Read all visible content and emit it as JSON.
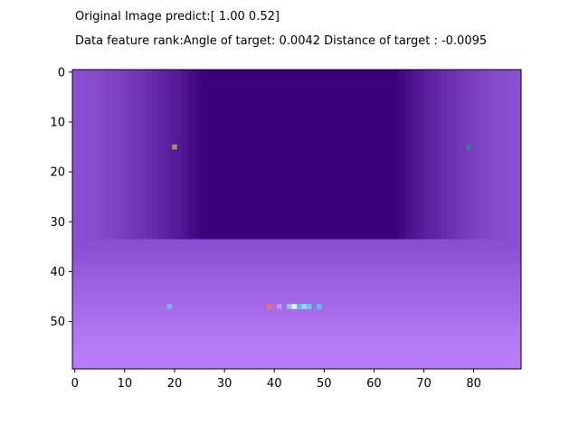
{
  "header": {
    "line1": "Original Image predict:[ 1.00  0.52]",
    "line2": "Data feature rank:Angle of target: 0.0042 Distance of target : -0.0095"
  },
  "chart_data": {
    "type": "heatmap",
    "title": "",
    "xlabel": "",
    "ylabel": "",
    "xlim": [
      -0.5,
      89.5
    ],
    "ylim": [
      59.5,
      -0.5
    ],
    "x_ticks": [
      "0",
      "10",
      "20",
      "30",
      "40",
      "50",
      "60",
      "70",
      "80"
    ],
    "y_ticks": [
      "0",
      "10",
      "20",
      "30",
      "40",
      "50"
    ],
    "image_width": 90,
    "image_height": 60,
    "colors": {
      "back_wall": "#3d007c",
      "side_wall_outer": "#8a4ed0",
      "floor_far": "#8a4ed0",
      "floor_near": "#b87cf8"
    },
    "highlighted_pixels": [
      {
        "x": 20,
        "y": 15,
        "color": "#9a9a60"
      },
      {
        "x": 79,
        "y": 15,
        "color": "#3a7a9a"
      },
      {
        "x": 19,
        "y": 47,
        "color": "#80b0f8"
      },
      {
        "x": 39,
        "y": 47,
        "color": "#f07070"
      },
      {
        "x": 41,
        "y": 47,
        "color": "#c890f8"
      },
      {
        "x": 43,
        "y": 47,
        "color": "#80d0f0"
      },
      {
        "x": 44,
        "y": 47,
        "color": "#f0f0d0"
      },
      {
        "x": 45,
        "y": 47,
        "color": "#60c0f0"
      },
      {
        "x": 46,
        "y": 47,
        "color": "#a0d8f8"
      },
      {
        "x": 47,
        "y": 47,
        "color": "#60d0f8"
      },
      {
        "x": 49,
        "y": 47,
        "color": "#50c8f0"
      }
    ]
  }
}
